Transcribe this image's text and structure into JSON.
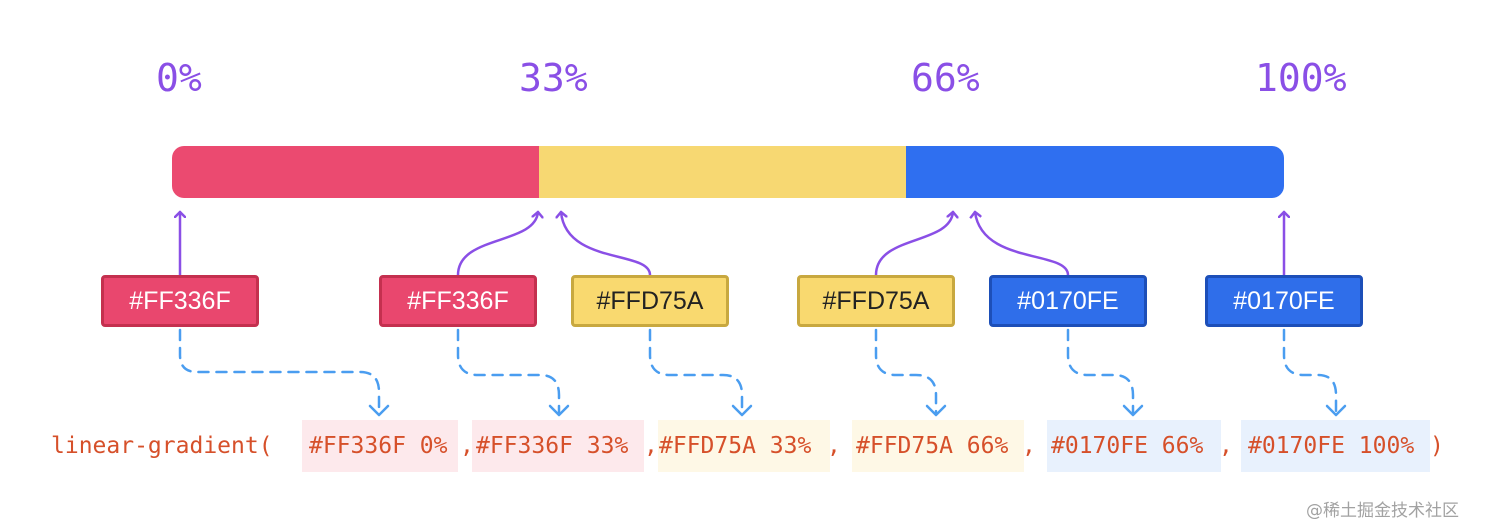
{
  "percent_labels": [
    "0%",
    "33%",
    "66%",
    "100%"
  ],
  "gradient_bar": {
    "segments": [
      {
        "color": "#EB4A70",
        "start": 0,
        "end": 33
      },
      {
        "color": "#F7D872",
        "start": 33,
        "end": 66
      },
      {
        "color": "#2F6FF0",
        "start": 66,
        "end": 100
      }
    ]
  },
  "color_boxes": [
    "#FF336F",
    "#FF336F",
    "#FFD75A",
    "#FFD75A",
    "#0170FE",
    "#0170FE"
  ],
  "code": {
    "prefix": "linear-gradient(",
    "stops": [
      "#FF336F 0%",
      "#FF336F 33%",
      "#FFD75A 33%",
      "#FFD75A 66%",
      "#0170FE 66%",
      "#0170FE 100%"
    ],
    "separator": ",",
    "suffix": ")"
  },
  "colors": {
    "accent_purple": "#8A4FE6",
    "dashed_blue": "#4A9DF0",
    "code_text": "#D6502A"
  },
  "watermark": "@稀土掘金技术社区"
}
